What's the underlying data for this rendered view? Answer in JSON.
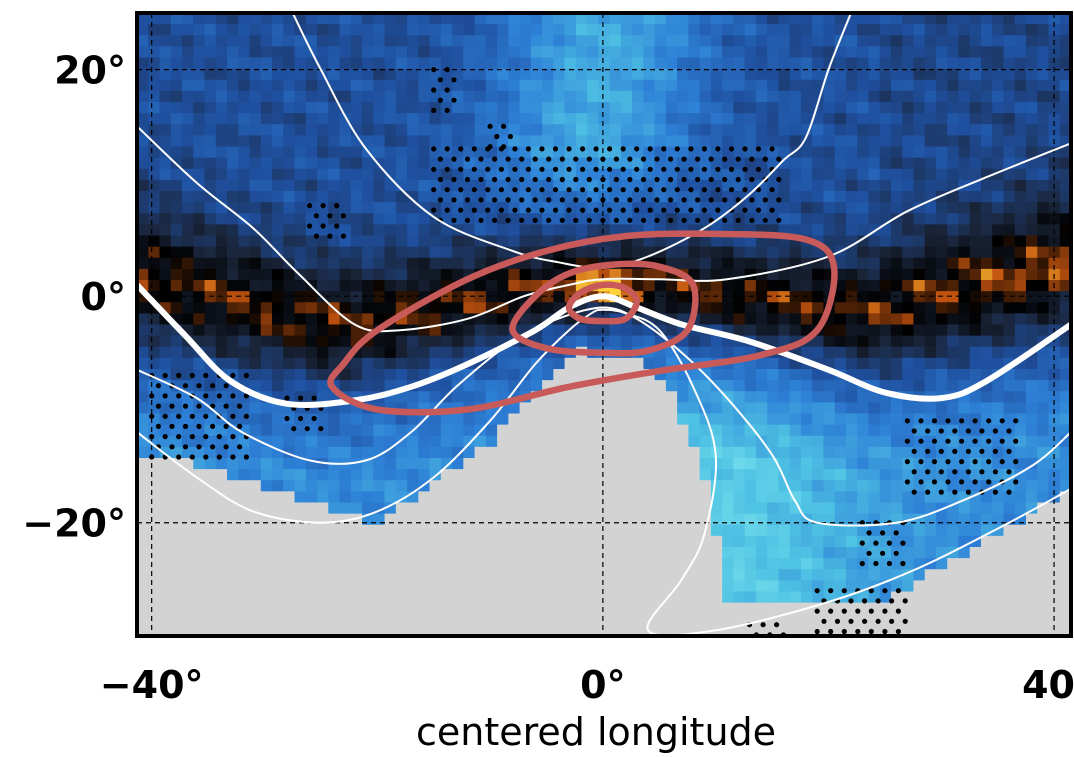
{
  "chart_data": {
    "type": "heatmap",
    "title": "",
    "xlabel": "centered longitude",
    "ylabel": "",
    "xlim": [
      -41.3,
      41.5
    ],
    "ylim": [
      -30,
      25
    ],
    "x_ticks": [
      {
        "value": -40,
        "label": "−40°"
      },
      {
        "value": 0,
        "label": "0°"
      },
      {
        "value": 40,
        "label": "40"
      }
    ],
    "y_ticks": [
      {
        "value": 20,
        "label": "20°"
      },
      {
        "value": 0,
        "label": "0°"
      },
      {
        "value": -20,
        "label": "−20°"
      }
    ],
    "grid": true,
    "grid_style": "dashed",
    "colormap": [
      "#d3d3d3",
      "#7fe6ee",
      "#4fc3e4",
      "#2d7fd6",
      "#1f4f9e",
      "#1a2438",
      "#000000",
      "#c2530f",
      "#ffd23a"
    ],
    "masked_color": "#d3d3d3",
    "field_features": [
      {
        "kind": "maximum",
        "x": 0,
        "y": 1,
        "value_level": 1.0
      },
      {
        "kind": "dark-band",
        "description": "dark trough band east–west through the equator, dipping to ~-3° near 20°W"
      },
      {
        "kind": "bright-region",
        "x_range": [
          -12,
          10
        ],
        "y_range": [
          8,
          25
        ],
        "value_level": 0.25
      },
      {
        "kind": "masked-region",
        "note": "grey masked area in the south, including a lobe from 0° reaching up to about -5°"
      }
    ],
    "overlay_contours": {
      "color": "#c85a5a",
      "rings": [
        {
          "level": "outer",
          "points": [
            [
              -23,
              -6
            ],
            [
              -20,
              -3
            ],
            [
              -12,
              1.5
            ],
            [
              -5,
              4
            ],
            [
              2,
              5.3
            ],
            [
              10,
              5.5
            ],
            [
              18,
              5
            ],
            [
              20.5,
              2.5
            ],
            [
              19,
              -3
            ],
            [
              14,
              -5.2
            ],
            [
              5,
              -6.6
            ],
            [
              -3,
              -8
            ],
            [
              -12,
              -10
            ],
            [
              -20,
              -10
            ],
            [
              -24,
              -8
            ]
          ]
        },
        {
          "level": "middle",
          "points": [
            [
              -8,
              -3
            ],
            [
              -6,
              0
            ],
            [
              -3,
              2
            ],
            [
              1,
              2.8
            ],
            [
              5,
              2.6
            ],
            [
              8,
              1
            ],
            [
              7.5,
              -3
            ],
            [
              4,
              -4.8
            ],
            [
              0,
              -5
            ],
            [
              -5,
              -4.6
            ]
          ]
        },
        {
          "level": "inner",
          "points": [
            [
              -3,
              -1
            ],
            [
              -2,
              0.3
            ],
            [
              0,
              1
            ],
            [
              2,
              0.7
            ],
            [
              3,
              -0.5
            ],
            [
              2,
              -2
            ],
            [
              0,
              -2.2
            ],
            [
              -2,
              -2
            ]
          ]
        }
      ]
    },
    "white_contours": [
      {
        "weight": "thick",
        "points": [
          [
            -41.3,
            1
          ],
          [
            -37,
            -3.5
          ],
          [
            -33,
            -7.5
          ],
          [
            -28,
            -9.5
          ],
          [
            -22,
            -9.2
          ],
          [
            -17,
            -8
          ],
          [
            -12,
            -6
          ],
          [
            -6,
            -3
          ],
          [
            -3,
            -1
          ],
          [
            0,
            0
          ],
          [
            3,
            -1
          ],
          [
            7,
            -2.5
          ],
          [
            13,
            -4
          ],
          [
            20,
            -6.5
          ],
          [
            25,
            -8.5
          ],
          [
            30,
            -9
          ],
          [
            34,
            -7.5
          ],
          [
            41.5,
            -2.5
          ]
        ]
      },
      {
        "weight": "thin",
        "points": [
          [
            -41.3,
            15
          ],
          [
            -36,
            10
          ],
          [
            -31,
            6
          ],
          [
            -27,
            2
          ],
          [
            -22,
            -2.5
          ],
          [
            -18,
            -3
          ],
          [
            -12,
            -2
          ],
          [
            -7,
            0
          ],
          [
            -3,
            1
          ],
          [
            0,
            1.5
          ],
          [
            5,
            1.5
          ],
          [
            11,
            1.5
          ],
          [
            20,
            3.5
          ],
          [
            27,
            7.5
          ],
          [
            34,
            10.5
          ],
          [
            41.5,
            13.5
          ]
        ]
      },
      {
        "weight": "thin",
        "points": [
          [
            -27.5,
            25
          ],
          [
            -25,
            20
          ],
          [
            -21,
            13
          ],
          [
            -15,
            7
          ],
          [
            -8,
            4
          ],
          [
            -4,
            3
          ],
          [
            0,
            2.5
          ],
          [
            4,
            3.5
          ],
          [
            9,
            6
          ],
          [
            13,
            9
          ],
          [
            16,
            12
          ],
          [
            18,
            14
          ],
          [
            20,
            20
          ],
          [
            22,
            25
          ]
        ]
      },
      {
        "weight": "thin",
        "points": [
          [
            -41.3,
            -6.5
          ],
          [
            -36,
            -9
          ],
          [
            -32,
            -12
          ],
          [
            -26,
            -14.5
          ],
          [
            -21,
            -14.5
          ],
          [
            -17,
            -12
          ],
          [
            -13,
            -8
          ],
          [
            -8,
            -4
          ],
          [
            -4,
            -2
          ],
          [
            0,
            -1
          ],
          [
            3,
            -2
          ],
          [
            7,
            -5
          ],
          [
            11,
            -9
          ],
          [
            15,
            -14
          ],
          [
            17,
            -18
          ],
          [
            19,
            -20
          ],
          [
            26,
            -20
          ],
          [
            32,
            -18
          ],
          [
            38,
            -15
          ],
          [
            41.5,
            -12
          ]
        ]
      },
      {
        "weight": "thin",
        "points": [
          [
            -41.3,
            -12
          ],
          [
            -36,
            -16
          ],
          [
            -31,
            -19
          ],
          [
            -25,
            -20
          ],
          [
            -20,
            -19
          ],
          [
            -15,
            -16
          ],
          [
            -10,
            -11
          ],
          [
            -6,
            -6
          ],
          [
            -3,
            -3
          ],
          [
            -1,
            -1.5
          ],
          [
            0,
            -1.2
          ],
          [
            2,
            -1.5
          ],
          [
            5,
            -3
          ],
          [
            8,
            -8
          ],
          [
            10,
            -14
          ],
          [
            9,
            -21
          ],
          [
            7,
            -25
          ],
          [
            4,
            -29.5
          ],
          [
            10,
            -29.5
          ],
          [
            20,
            -27
          ],
          [
            28,
            -24
          ],
          [
            36,
            -20
          ],
          [
            41.5,
            -17
          ]
        ]
      }
    ],
    "stipple_regions": [
      {
        "x_range": [
          -15,
          16
        ],
        "y_range": [
          6,
          13
        ]
      },
      {
        "x_range": [
          -10,
          -8
        ],
        "y_range": [
          13,
          15
        ]
      },
      {
        "x_range": [
          -15,
          -13
        ],
        "y_range": [
          16,
          20
        ]
      },
      {
        "x_range": [
          -26,
          -23
        ],
        "y_range": [
          5,
          8
        ]
      },
      {
        "x_range": [
          -40,
          -31
        ],
        "y_range": [
          -15,
          -7
        ]
      },
      {
        "x_range": [
          -28,
          -25
        ],
        "y_range": [
          -12,
          -9
        ]
      },
      {
        "x_range": [
          27,
          37
        ],
        "y_range": [
          -18,
          -11
        ]
      },
      {
        "x_range": [
          23,
          27
        ],
        "y_range": [
          -24,
          -20
        ]
      },
      {
        "x_range": [
          19,
          27
        ],
        "y_range": [
          -30,
          -26
        ]
      },
      {
        "x_range": [
          13,
          16
        ],
        "y_range": [
          -30,
          -29
        ]
      }
    ]
  }
}
